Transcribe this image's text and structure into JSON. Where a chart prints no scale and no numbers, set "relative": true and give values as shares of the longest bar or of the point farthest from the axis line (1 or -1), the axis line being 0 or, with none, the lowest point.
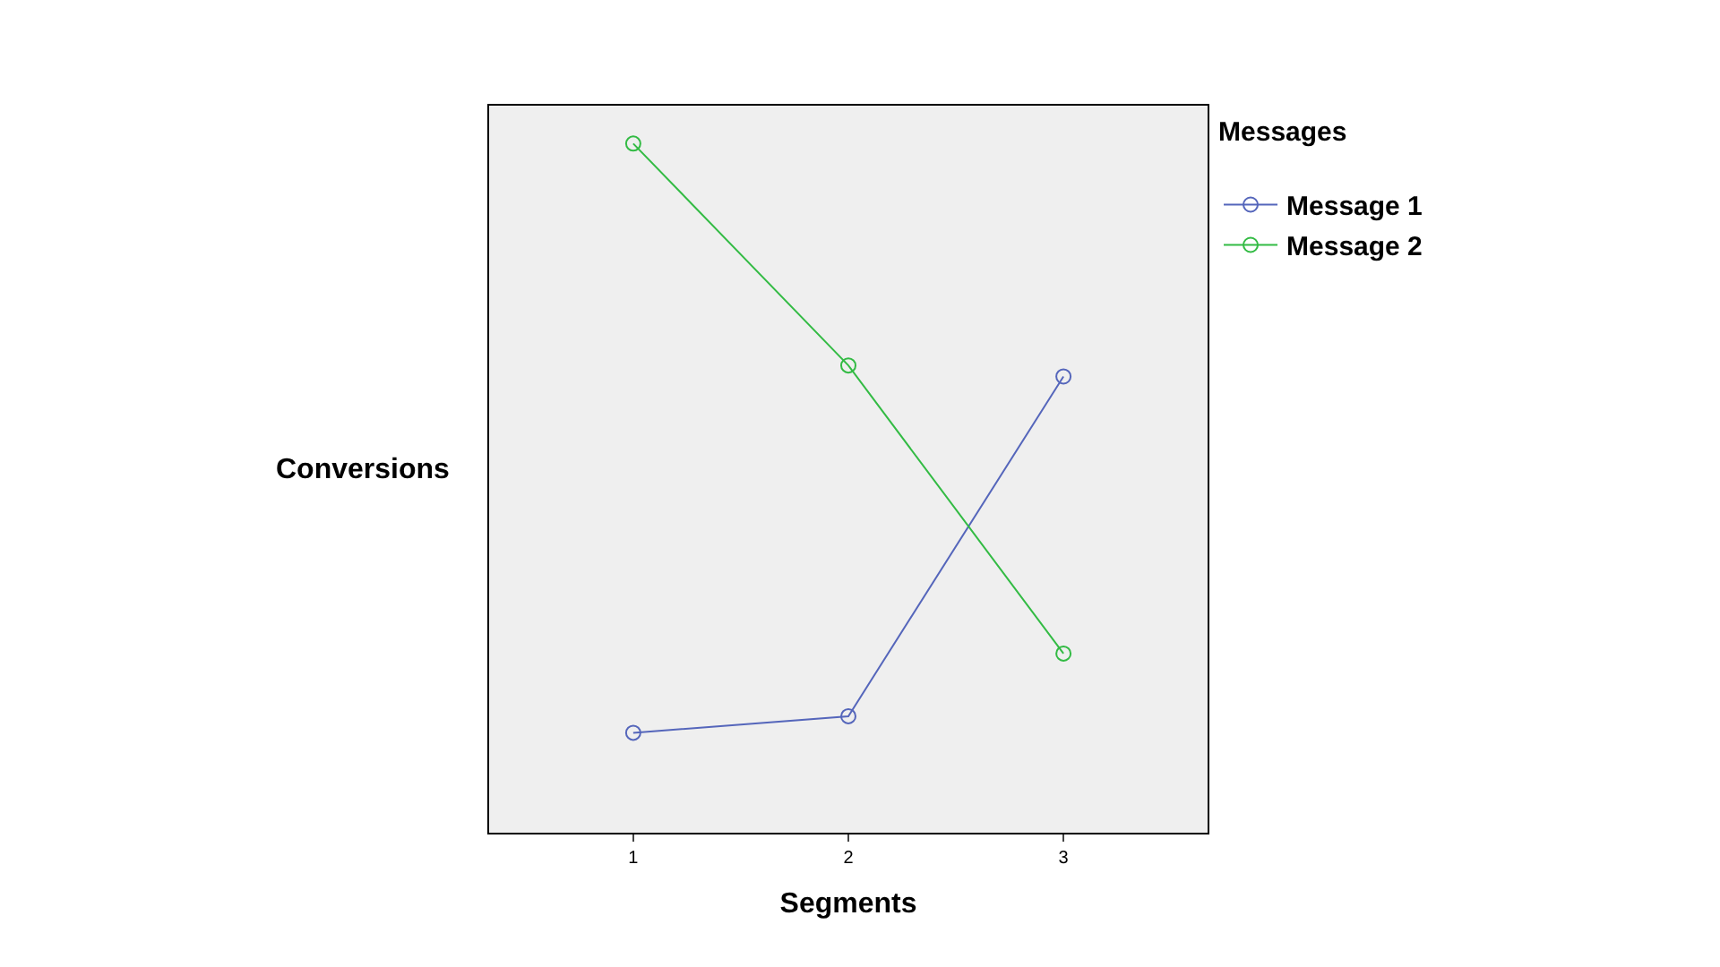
{
  "chart_data": {
    "type": "line",
    "xlabel": "Segments",
    "ylabel": "Conversions",
    "legend_title": "Messages",
    "relative": true,
    "x": [
      1,
      2,
      3
    ],
    "xlim": [
      0.33,
      3.67
    ],
    "xticks": [
      1,
      2,
      3
    ],
    "series": [
      {
        "name": "Message 1",
        "color": "#5566bb",
        "values": [
          0.145,
          0.169,
          0.662
        ]
      },
      {
        "name": "Message 2",
        "color": "#33bb44",
        "values": [
          1.0,
          0.678,
          0.26
        ]
      }
    ],
    "marker": "circle",
    "line_style": "solid",
    "grid": false,
    "legend": "top right"
  }
}
